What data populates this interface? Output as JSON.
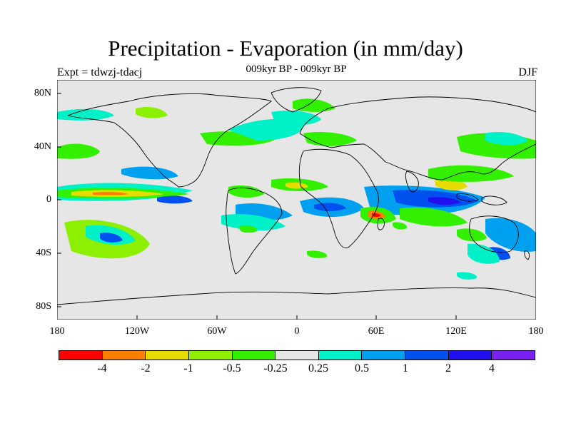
{
  "title": "Precipitation - Evaporation (in mm/day)",
  "subtitle": "009kyr BP - 009kyr BP",
  "expt_label": "Expt = tdwzj-tdacj",
  "season": "DJF",
  "map": {
    "projection": "cylindrical equidistant",
    "lon_range": [
      -180,
      180
    ],
    "lat_range": [
      -90,
      90
    ],
    "background_color": "#e6e6e6",
    "coastline_color": "#000000",
    "y_tick_labels": [
      "80N",
      "40N",
      "0",
      "40S",
      "80S"
    ],
    "x_tick_labels": [
      "180",
      "120W",
      "60W",
      "0",
      "60E",
      "120E",
      "180"
    ]
  },
  "colorbar": {
    "colors": [
      "#ff0000",
      "#ff7f00",
      "#e6dc00",
      "#8cf000",
      "#33f000",
      "#e6e6e6",
      "#00f0c8",
      "#00a0f0",
      "#0050f0",
      "#2010f0",
      "#7a20f0"
    ],
    "labels": [
      "-4",
      "-2",
      "-1",
      "-0.5",
      "-0.25",
      "0.25",
      "0.5",
      "1",
      "2",
      "4"
    ]
  }
}
